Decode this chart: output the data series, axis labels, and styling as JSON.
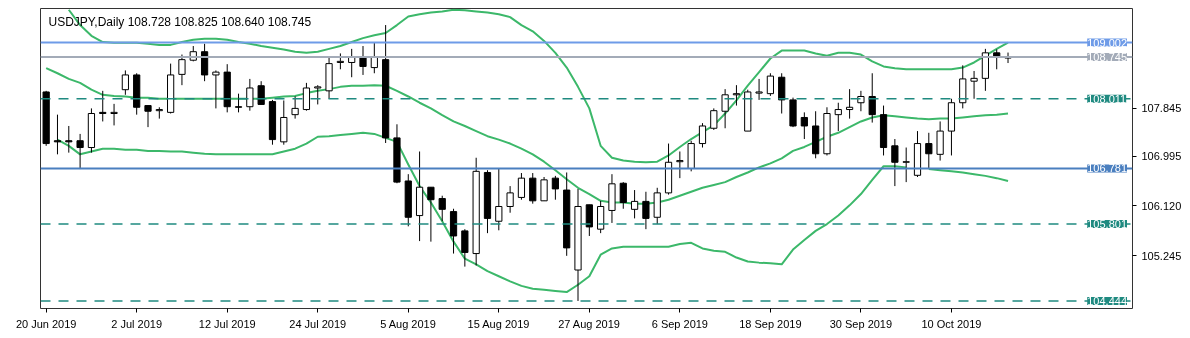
{
  "chart_data": {
    "type": "candlestick",
    "title": "USDJPY,Daily  108.728 108.825 108.640 108.745",
    "categories": [
      "20 Jun 2019",
      null,
      null,
      null,
      null,
      null,
      null,
      null,
      "2 Jul 2019",
      null,
      null,
      null,
      null,
      null,
      null,
      null,
      "12 Jul 2019",
      null,
      null,
      null,
      null,
      null,
      null,
      null,
      "24 Jul 2019",
      null,
      null,
      null,
      null,
      null,
      null,
      null,
      "5 Aug 2019",
      null,
      null,
      null,
      null,
      null,
      null,
      null,
      "15 Aug 2019",
      null,
      null,
      null,
      null,
      null,
      null,
      null,
      "27 Aug 2019",
      null,
      null,
      null,
      null,
      null,
      null,
      null,
      "6 Sep 2019",
      null,
      null,
      null,
      null,
      null,
      null,
      null,
      "18 Sep 2019",
      null,
      null,
      null,
      null,
      null,
      null,
      null,
      "30 Sep 2019",
      null,
      null,
      null,
      null,
      null,
      null,
      null,
      "10 Oct 2019",
      null,
      null,
      null,
      null,
      null
    ],
    "ohlc": [
      [
        108.13,
        108.15,
        107.18,
        107.22
      ],
      [
        107.27,
        107.73,
        107.03,
        107.25
      ],
      [
        107.27,
        107.53,
        107.06,
        107.25
      ],
      [
        107.27,
        107.39,
        106.77,
        107.15
      ],
      [
        107.15,
        107.84,
        107.06,
        107.75
      ],
      [
        107.77,
        108.15,
        107.61,
        107.75
      ],
      [
        107.75,
        107.92,
        107.54,
        107.77
      ],
      [
        108.17,
        108.51,
        108.08,
        108.43
      ],
      [
        108.43,
        108.46,
        107.73,
        107.86
      ],
      [
        107.89,
        107.89,
        107.51,
        107.79
      ],
      [
        107.8,
        107.86,
        107.66,
        107.82
      ],
      [
        107.77,
        108.63,
        107.75,
        108.43
      ],
      [
        108.44,
        108.79,
        108.25,
        108.7
      ],
      [
        108.69,
        108.94,
        108.67,
        108.84
      ],
      [
        108.84,
        108.98,
        108.32,
        108.43
      ],
      [
        108.43,
        108.51,
        107.84,
        108.48
      ],
      [
        108.48,
        108.62,
        107.77,
        107.87
      ],
      [
        107.87,
        108.1,
        107.77,
        107.86
      ],
      [
        107.87,
        108.36,
        107.8,
        108.2
      ],
      [
        108.24,
        108.32,
        107.91,
        107.91
      ],
      [
        107.96,
        107.99,
        107.2,
        107.29
      ],
      [
        107.25,
        107.98,
        107.2,
        107.68
      ],
      [
        107.73,
        108.05,
        107.66,
        107.84
      ],
      [
        107.82,
        108.29,
        107.8,
        108.2
      ],
      [
        108.2,
        108.25,
        107.91,
        108.22
      ],
      [
        108.15,
        108.74,
        108.01,
        108.63
      ],
      [
        108.65,
        108.81,
        108.53,
        108.67
      ],
      [
        108.65,
        108.89,
        108.39,
        108.75
      ],
      [
        108.75,
        108.94,
        108.43,
        108.58
      ],
      [
        108.56,
        109.0,
        108.46,
        108.75
      ],
      [
        108.7,
        109.31,
        107.23,
        107.32
      ],
      [
        107.32,
        107.56,
        106.52,
        106.54
      ],
      [
        106.56,
        106.68,
        105.76,
        105.92
      ],
      [
        105.95,
        107.08,
        105.5,
        106.45
      ],
      [
        106.45,
        106.45,
        105.49,
        106.23
      ],
      [
        106.25,
        106.3,
        105.85,
        106.06
      ],
      [
        106.02,
        106.07,
        105.28,
        105.59
      ],
      [
        105.68,
        105.71,
        105.05,
        105.3
      ],
      [
        105.28,
        106.97,
        105.07,
        106.73
      ],
      [
        106.71,
        106.75,
        105.64,
        105.9
      ],
      [
        105.85,
        106.78,
        105.69,
        106.11
      ],
      [
        106.11,
        106.47,
        106.0,
        106.35
      ],
      [
        106.27,
        106.7,
        106.23,
        106.61
      ],
      [
        106.61,
        106.7,
        106.16,
        106.21
      ],
      [
        106.21,
        106.63,
        106.21,
        106.58
      ],
      [
        106.61,
        106.65,
        106.23,
        106.42
      ],
      [
        106.4,
        106.71,
        105.24,
        105.38
      ],
      [
        104.99,
        106.42,
        104.444,
        106.11
      ],
      [
        106.14,
        106.14,
        105.59,
        105.75
      ],
      [
        105.71,
        106.21,
        105.64,
        106.11
      ],
      [
        106.04,
        106.68,
        105.82,
        106.51
      ],
      [
        106.52,
        106.54,
        106.07,
        106.18
      ],
      [
        106.06,
        106.4,
        105.9,
        106.2
      ],
      [
        106.2,
        106.37,
        105.71,
        105.9
      ],
      [
        105.92,
        106.44,
        105.8,
        106.35
      ],
      [
        106.35,
        107.22,
        106.32,
        106.89
      ],
      [
        106.9,
        107.08,
        106.61,
        106.92
      ],
      [
        106.78,
        107.27,
        106.73,
        107.22
      ],
      [
        107.22,
        107.58,
        107.15,
        107.53
      ],
      [
        107.49,
        107.84,
        107.46,
        107.8
      ],
      [
        107.79,
        108.18,
        107.49,
        108.08
      ],
      [
        108.08,
        108.25,
        107.89,
        108.1
      ],
      [
        107.44,
        108.17,
        107.44,
        108.13
      ],
      [
        108.11,
        108.36,
        107.99,
        108.13
      ],
      [
        108.1,
        108.46,
        108.06,
        108.41
      ],
      [
        108.39,
        108.46,
        107.75,
        107.99
      ],
      [
        107.99,
        108.03,
        107.51,
        107.53
      ],
      [
        107.68,
        107.77,
        107.3,
        107.53
      ],
      [
        107.53,
        107.79,
        106.96,
        107.04
      ],
      [
        107.04,
        107.86,
        107.01,
        107.75
      ],
      [
        107.73,
        107.94,
        107.44,
        107.82
      ],
      [
        107.82,
        108.18,
        107.66,
        107.86
      ],
      [
        107.94,
        108.15,
        107.79,
        108.05
      ],
      [
        108.05,
        108.46,
        107.59,
        107.73
      ],
      [
        107.73,
        107.89,
        107.01,
        107.15
      ],
      [
        107.18,
        107.3,
        106.47,
        106.89
      ],
      [
        106.89,
        107.15,
        106.54,
        106.9
      ],
      [
        106.66,
        107.44,
        106.63,
        107.22
      ],
      [
        107.22,
        107.41,
        106.78,
        107.04
      ],
      [
        107.03,
        107.61,
        106.92,
        107.44
      ],
      [
        107.44,
        108.01,
        107.01,
        107.94
      ],
      [
        107.94,
        108.6,
        107.84,
        108.36
      ],
      [
        108.32,
        108.5,
        108.01,
        108.37
      ],
      [
        108.37,
        108.89,
        108.15,
        108.82
      ],
      [
        108.82,
        108.88,
        108.53,
        108.74
      ],
      [
        108.728,
        108.825,
        108.64,
        108.745
      ]
    ],
    "series": [
      {
        "type": "line",
        "color": "#3cb86a",
        "values": [
          null,
          null,
          109.58,
          109.31,
          109.12,
          109.01,
          109.0,
          109.0,
          109.0,
          108.98,
          108.96,
          108.96,
          109.01,
          109.05,
          109.07,
          109.07,
          109.05,
          109.01,
          108.98,
          108.94,
          108.91,
          108.88,
          108.84,
          108.82,
          108.84,
          108.89,
          108.94,
          109.01,
          109.08,
          109.13,
          109.17,
          109.31,
          109.46,
          109.5,
          109.53,
          109.55,
          109.58,
          109.57,
          109.55,
          109.53,
          109.5,
          109.45,
          109.31,
          109.2,
          109.03,
          108.82,
          108.56,
          108.22,
          107.84,
          107.18,
          106.97,
          106.92,
          106.9,
          106.89,
          106.9,
          107.01,
          107.16,
          107.3,
          107.42,
          107.54,
          107.75,
          107.98,
          108.24,
          108.48,
          108.72,
          108.86,
          108.86,
          108.86,
          108.81,
          108.77,
          108.82,
          108.82,
          108.79,
          108.67,
          108.58,
          108.55,
          108.53,
          108.53,
          108.53,
          108.53,
          108.53,
          108.56,
          108.65,
          108.77,
          108.89,
          109.0
        ]
      },
      {
        "type": "line",
        "color": "#3cb86a",
        "values": [
          108.55,
          108.46,
          108.36,
          108.29,
          108.17,
          108.08,
          108.06,
          108.05,
          108.03,
          108.03,
          108.01,
          108.01,
          108.01,
          108.01,
          108.01,
          108.01,
          108.01,
          108.01,
          108.01,
          108.01,
          108.03,
          108.05,
          108.06,
          108.11,
          108.15,
          108.18,
          108.22,
          108.24,
          108.24,
          108.25,
          108.24,
          108.15,
          108.05,
          107.94,
          107.84,
          107.72,
          107.61,
          107.53,
          107.44,
          107.35,
          107.29,
          107.22,
          107.13,
          107.03,
          106.9,
          106.75,
          106.59,
          106.44,
          106.33,
          106.21,
          106.18,
          106.18,
          106.16,
          106.16,
          106.18,
          106.23,
          106.3,
          106.37,
          106.44,
          106.49,
          106.54,
          106.63,
          106.71,
          106.8,
          106.87,
          106.96,
          107.09,
          107.16,
          107.25,
          107.34,
          107.41,
          107.51,
          107.61,
          107.68,
          107.72,
          107.7,
          107.68,
          107.66,
          107.65,
          107.66,
          107.66,
          107.68,
          107.7,
          107.72,
          107.73,
          107.75
        ]
      },
      {
        "type": "line",
        "color": "#3cb86a",
        "values": [
          null,
          107.29,
          107.18,
          107.03,
          107.08,
          107.13,
          107.13,
          107.11,
          107.11,
          107.09,
          107.09,
          107.08,
          107.08,
          107.06,
          107.04,
          107.03,
          107.03,
          107.03,
          107.03,
          107.03,
          107.03,
          107.08,
          107.13,
          107.22,
          107.34,
          107.35,
          107.37,
          107.39,
          107.41,
          107.39,
          107.32,
          107.25,
          106.85,
          106.47,
          106.18,
          105.85,
          105.49,
          105.19,
          105.09,
          104.97,
          104.88,
          104.79,
          104.71,
          104.66,
          104.64,
          104.62,
          104.6,
          104.73,
          104.88,
          105.26,
          105.37,
          105.4,
          105.4,
          105.4,
          105.4,
          105.4,
          105.45,
          105.47,
          105.37,
          105.33,
          105.31,
          105.21,
          105.14,
          105.12,
          105.11,
          105.09,
          105.35,
          105.52,
          105.68,
          105.8,
          105.95,
          106.13,
          106.33,
          106.58,
          106.82,
          106.82,
          106.8,
          null,
          106.77,
          106.75,
          106.73,
          106.71,
          106.68,
          106.65,
          106.61,
          106.56
        ]
      }
    ],
    "ylim": [
      104.311,
      109.602
    ],
    "yticks": [
      107.845,
      106.995,
      {
        "value": 106.12,
        "label": "106.120"
      },
      105.245
    ],
    "ref_lines": [
      {
        "axis": "y",
        "value": 109.002,
        "label": "109.002",
        "color": "#6e9be8",
        "line_style": "solid"
      },
      {
        "axis": "y",
        "value": 108.745,
        "label": "108.745",
        "color": "#a3abb8",
        "line_style": "solid"
      },
      {
        "axis": "y",
        "value": 108.011,
        "label": "108.011",
        "color": "#1f8a80",
        "line_style": "dashed"
      },
      {
        "axis": "y",
        "value": 106.781,
        "label": "106.781",
        "color": "#4a7fbf",
        "line_style": "solid"
      },
      {
        "axis": "y",
        "value": 105.801,
        "label": "105.801",
        "color": "#1f8a80",
        "line_style": "dashed"
      },
      {
        "axis": "y",
        "value": 104.444,
        "label": "104.444",
        "color": "#1f8a80",
        "line_style": "dashed"
      }
    ]
  }
}
